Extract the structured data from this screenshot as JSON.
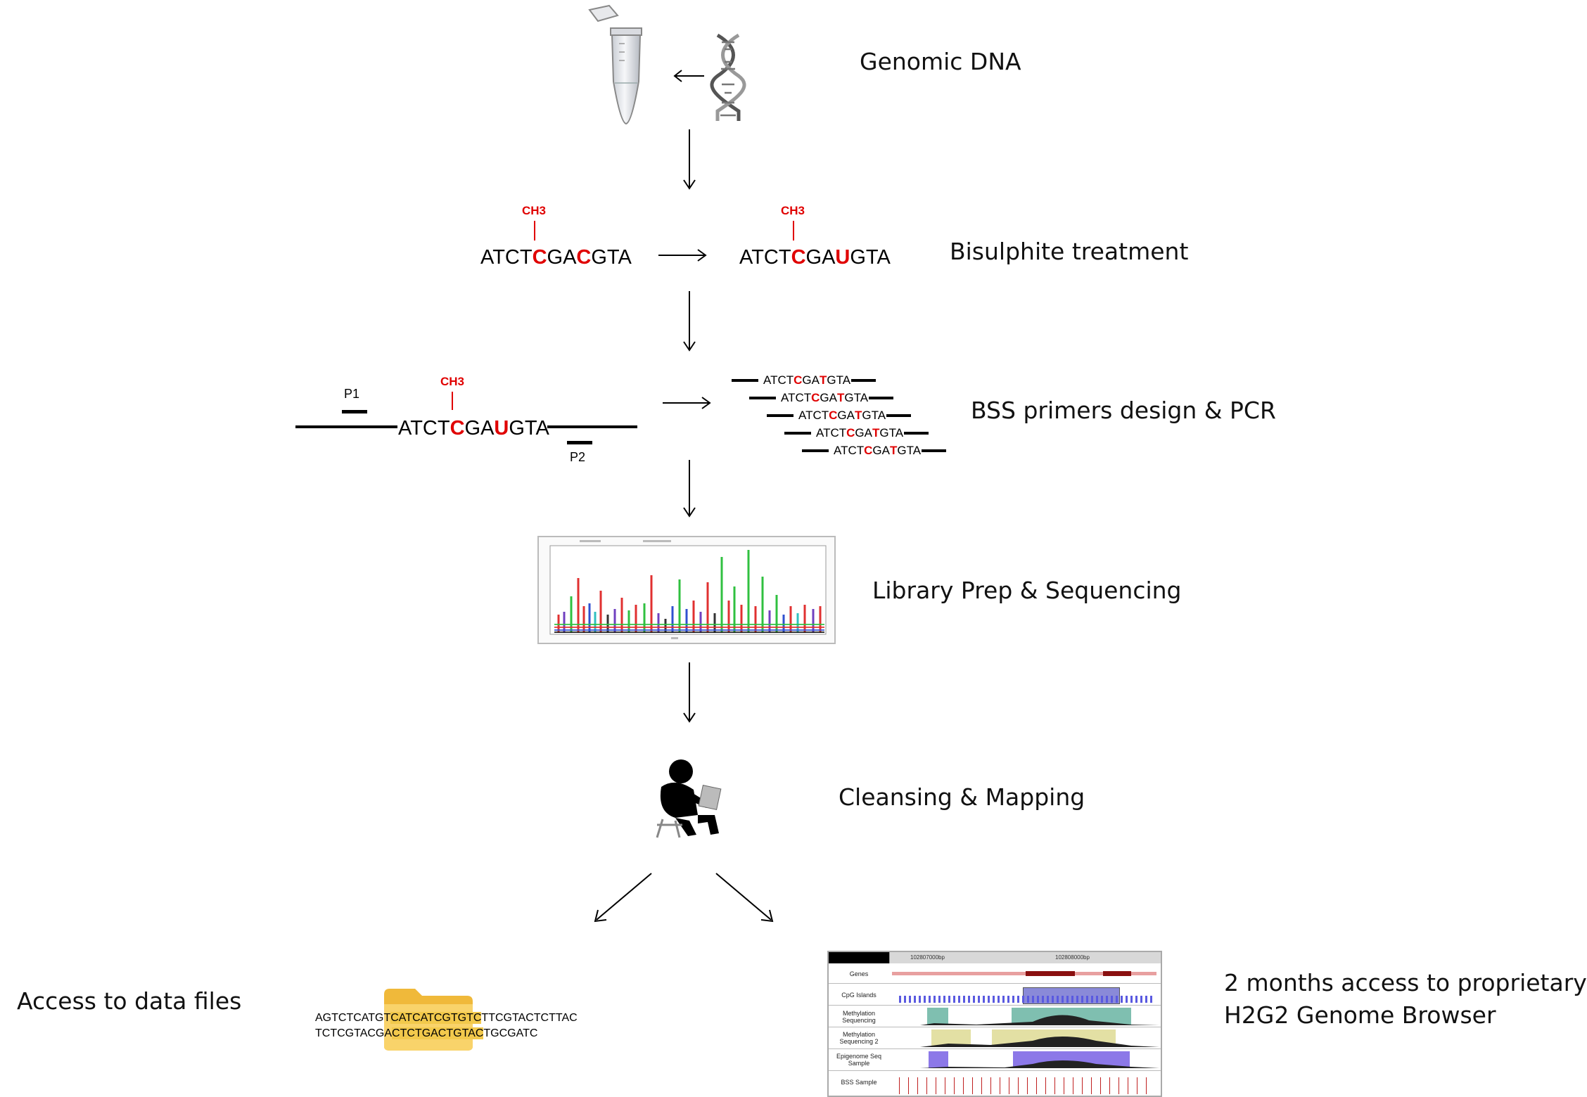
{
  "steps": {
    "genomic_dna": "Genomic DNA",
    "bisulphite": "Bisulphite treatment",
    "bss_pcr": "BSS primers design & PCR",
    "library": "Library Prep & Sequencing",
    "cleansing": "Cleansing & Mapping",
    "data_files": "Access to data files",
    "browser_line1": "2 months access to proprietary",
    "browser_line2": "H2G2 Genome Browser"
  },
  "bisulphite": {
    "ch3": "CH3",
    "before": {
      "pre": "ATCT",
      "c1": "C",
      "mid": "GA",
      "c2": "C",
      "post": "GTA"
    },
    "after": {
      "pre": "ATCT",
      "c1": "C",
      "mid": "GA",
      "c2": "U",
      "post": "GTA"
    }
  },
  "pcr": {
    "ch3": "CH3",
    "primer1": "P1",
    "primer2": "P2",
    "template": {
      "pre": "ATCT",
      "c1": "C",
      "mid": "GA",
      "c2": "U",
      "post": "GTA"
    },
    "amplicon": {
      "pre": "ATCT",
      "c1": "C",
      "mid": "GA",
      "c2": "T",
      "post": "GTA"
    }
  },
  "data_file_seq": {
    "line1_a": "AGTCTCATGT",
    "line1_hl": "CATCATCGTGTC",
    "line1_b": "TTCGTACTCTTAC",
    "line2_a": "TCTCGTACGA",
    "line2_hl": "CTCTGACTGTAC",
    "line2_b": "TGCGATC"
  },
  "browser": {
    "coord1": "102807000bp",
    "coord2": "102808000bp",
    "tracks": {
      "genes": "Genes",
      "cpg": "CpG Islands",
      "meth1": "Methylation Sequencing",
      "meth2": "Methylation Sequencing 2",
      "epi": "Epigenome Seq Sample",
      "bss": "BSS Sample"
    }
  },
  "colors": {
    "highlight": "#e00000",
    "folder": "#f6c343",
    "cpg_blue": "#5a5ae0",
    "teal": "#7fbfb0",
    "khaki": "#e3e0a4",
    "violet": "#8c78e8"
  }
}
